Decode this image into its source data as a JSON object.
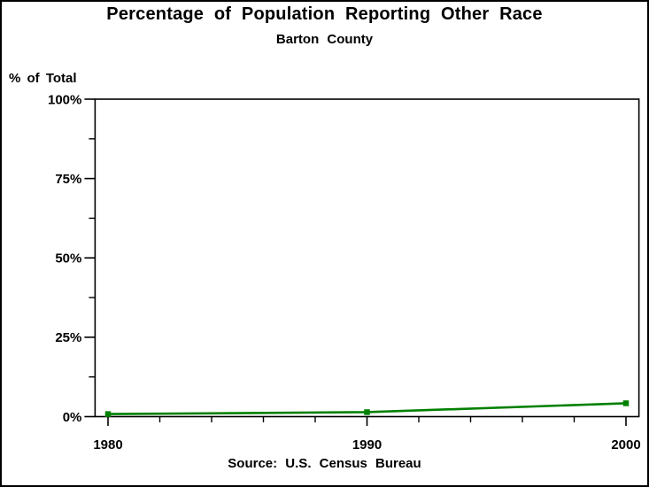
{
  "chart_data": {
    "type": "line",
    "title": "Percentage of Population Reporting Other Race",
    "subtitle": "Barton County",
    "y_axis_title": "% of Total",
    "source_note": "Source: U.S. Census Bureau",
    "x": [
      1980,
      1990,
      2000
    ],
    "x_tick_labels": [
      "1980",
      "1990",
      "2000"
    ],
    "values": [
      0.8,
      1.4,
      4.2
    ],
    "y_major_ticks": [
      0,
      25,
      50,
      75,
      100
    ],
    "y_tick_labels": [
      "0%",
      "25%",
      "50%",
      "75%",
      "100%"
    ],
    "y_minor_ticks": [
      12.5,
      37.5,
      62.5,
      87.5
    ],
    "x_minor_ticks": [
      1982,
      1984,
      1986,
      1988,
      1992,
      1994,
      1996,
      1998
    ],
    "xlim": [
      1979.5,
      2000.5
    ],
    "ylim": [
      0,
      100
    ],
    "grid": false,
    "legend": "none",
    "line_color": "#008000",
    "marker": "square",
    "axis_color": "#000000",
    "background_color": "#ffffff"
  }
}
